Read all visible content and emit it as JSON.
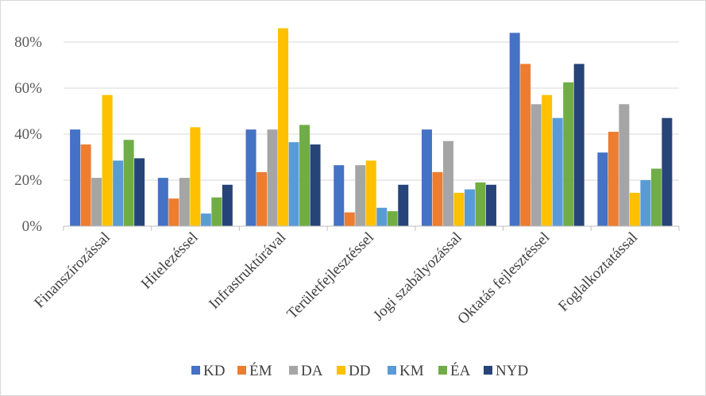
{
  "chart_data": {
    "type": "bar",
    "title": "",
    "xlabel": "",
    "ylabel": "",
    "ylim": [
      0,
      0.9
    ],
    "yticks": [
      0,
      0.2,
      0.4,
      0.6,
      0.8
    ],
    "ytick_labels": [
      "0%",
      "20%",
      "40%",
      "60%",
      "80%"
    ],
    "grid": true,
    "legend_position": "bottom",
    "categories": [
      "Finanszírozással",
      "Hitelezéssel",
      "Infrastruktúrával",
      "Területfejlesztéssel",
      "Jogi szabályozással",
      "Oktatás  fejlesztéssel",
      "Foglalkoztatással"
    ],
    "series": [
      {
        "name": "KD",
        "color": "#4472c4",
        "values": [
          0.42,
          0.21,
          0.42,
          0.265,
          0.42,
          0.84,
          0.32
        ]
      },
      {
        "name": "ÉM",
        "color": "#ed7d31",
        "values": [
          0.355,
          0.12,
          0.235,
          0.06,
          0.235,
          0.705,
          0.41
        ]
      },
      {
        "name": "DA",
        "color": "#a5a5a5",
        "values": [
          0.21,
          0.21,
          0.42,
          0.265,
          0.37,
          0.53,
          0.53
        ]
      },
      {
        "name": "DD",
        "color": "#ffc000",
        "values": [
          0.57,
          0.43,
          0.86,
          0.285,
          0.145,
          0.57,
          0.145
        ]
      },
      {
        "name": "KM",
        "color": "#5b9bd5",
        "values": [
          0.285,
          0.055,
          0.365,
          0.08,
          0.16,
          0.47,
          0.2
        ]
      },
      {
        "name": "ÉA",
        "color": "#70ad47",
        "values": [
          0.375,
          0.125,
          0.44,
          0.065,
          0.19,
          0.625,
          0.25
        ]
      },
      {
        "name": "NYD",
        "color": "#264478",
        "values": [
          0.295,
          0.18,
          0.355,
          0.18,
          0.18,
          0.705,
          0.47
        ]
      }
    ]
  }
}
